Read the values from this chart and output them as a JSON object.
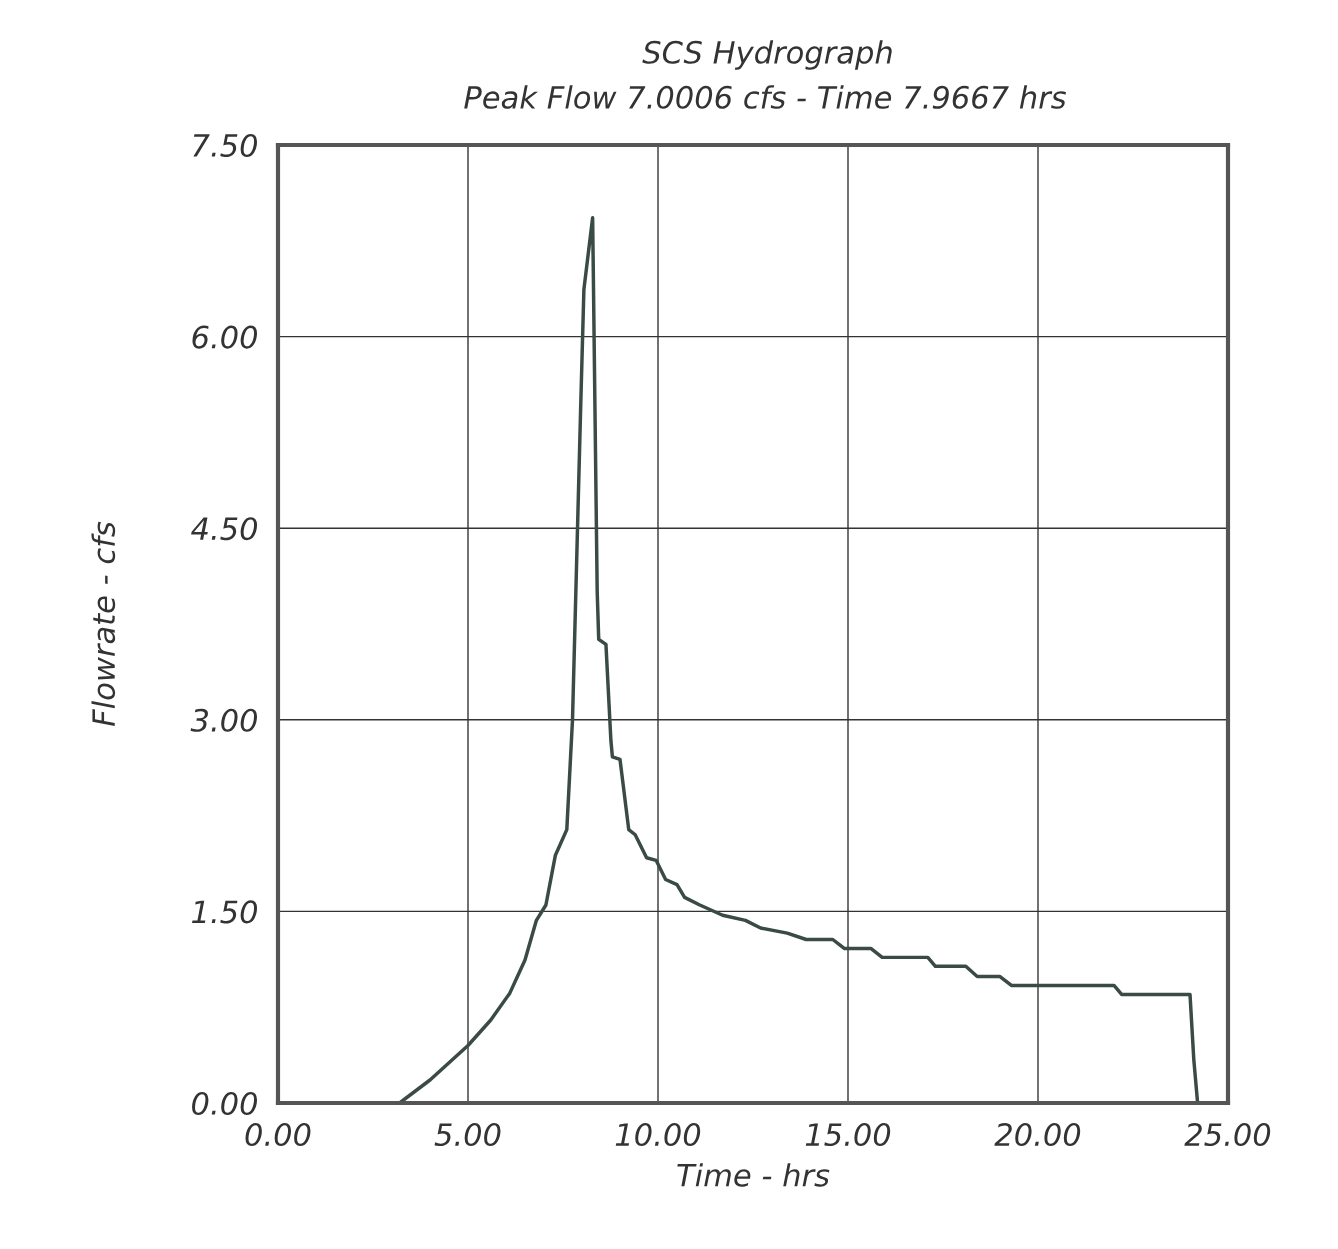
{
  "chart_data": {
    "type": "line",
    "title": "SCS Hydrograph",
    "subtitle": "Peak Flow 7.0006 cfs - Time 7.9667 hrs",
    "xlabel": "Time - hrs",
    "ylabel": "Flowrate - cfs",
    "series": [
      {
        "color": "#3a4a44",
        "x": [
          3.2,
          4.0,
          5.0,
          5.6,
          6.1,
          6.5,
          6.8,
          7.05,
          7.3,
          7.6,
          7.75,
          7.97,
          8.05,
          8.28,
          8.4,
          8.44,
          8.63,
          8.76,
          8.8,
          9.0,
          9.23,
          9.4,
          9.7,
          9.95,
          10.2,
          10.5,
          10.7,
          11.1,
          11.7,
          12.3,
          12.7,
          13.4,
          13.9,
          14.6,
          14.9,
          15.6,
          15.9,
          17.1,
          17.3,
          18.1,
          18.4,
          19.0,
          19.3,
          22.0,
          22.2,
          24.0,
          24.1,
          24.2
        ],
        "values": [
          0,
          0.18,
          0.45,
          0.65,
          0.86,
          1.12,
          1.43,
          1.55,
          1.94,
          2.14,
          3.0,
          5.5,
          6.37,
          6.93,
          4.0,
          3.63,
          3.59,
          2.84,
          2.71,
          2.69,
          2.14,
          2.1,
          1.92,
          1.9,
          1.75,
          1.71,
          1.61,
          1.55,
          1.47,
          1.43,
          1.37,
          1.33,
          1.28,
          1.28,
          1.21,
          1.21,
          1.14,
          1.14,
          1.07,
          1.07,
          0.99,
          0.99,
          0.92,
          0.92,
          0.85,
          0.85,
          0.34,
          0
        ]
      }
    ],
    "xlim": [
      0,
      25
    ],
    "ylim": [
      0,
      7.5
    ],
    "xticks": [
      {
        "value": 0,
        "label": "0.00"
      },
      {
        "value": 5,
        "label": "5.00"
      },
      {
        "value": 10,
        "label": "10.00"
      },
      {
        "value": 15,
        "label": "15.00"
      },
      {
        "value": 20,
        "label": "20.00"
      },
      {
        "value": 25,
        "label": "25.00"
      }
    ],
    "yticks": [
      {
        "value": 0,
        "label": "0.00"
      },
      {
        "value": 1.5,
        "label": "1.50"
      },
      {
        "value": 3,
        "label": "3.00"
      },
      {
        "value": 4.5,
        "label": "4.50"
      },
      {
        "value": 6,
        "label": "6.00"
      },
      {
        "value": 7.5,
        "label": "7.50"
      }
    ],
    "grid": true,
    "line_style": "solid"
  }
}
